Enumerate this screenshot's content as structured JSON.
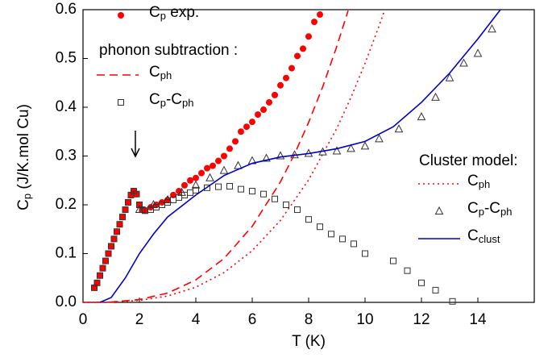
{
  "chart_data": {
    "type": "scatter",
    "x_label": "T (K)",
    "y_label": [
      "C",
      "p",
      " (J/K.mol Cu)"
    ],
    "annotations": [
      "phonon subtraction :",
      "Cluster model:"
    ],
    "xlim": [
      0,
      16
    ],
    "xticks": [
      0,
      2,
      4,
      6,
      8,
      10,
      12,
      14
    ],
    "ylim": [
      0,
      0.6
    ],
    "yticks": [
      {
        "value": 0,
        "label": "0.0"
      },
      0.1,
      0.2,
      0.3,
      0.4,
      0.5,
      0.6
    ],
    "series": [
      {
        "name": [
          "C",
          "p",
          " exp."
        ],
        "color": "#ff0000",
        "marker": "circle",
        "dash": "none",
        "x": [
          0.4,
          0.5,
          0.6,
          0.7,
          0.8,
          0.9,
          1.0,
          1.1,
          1.2,
          1.3,
          1.4,
          1.5,
          1.6,
          1.7,
          1.8,
          1.9,
          2.0,
          2.1,
          2.2,
          2.4,
          2.6,
          2.8,
          3.0,
          3.2,
          3.4,
          3.6,
          3.8,
          4.0,
          4.2,
          4.4,
          4.6,
          4.8,
          5.0,
          5.2,
          5.4,
          5.6,
          5.8,
          6.0,
          6.2,
          6.4,
          6.6,
          6.8,
          7.0,
          7.2,
          7.4,
          7.6,
          7.8,
          8.0,
          8.2,
          8.4
        ],
        "values": [
          0.03,
          0.04,
          0.055,
          0.07,
          0.085,
          0.1,
          0.115,
          0.13,
          0.145,
          0.16,
          0.175,
          0.19,
          0.205,
          0.22,
          0.228,
          0.222,
          0.2,
          0.19,
          0.188,
          0.195,
          0.2,
          0.205,
          0.21,
          0.22,
          0.228,
          0.24,
          0.25,
          0.255,
          0.265,
          0.275,
          0.28,
          0.29,
          0.3,
          0.315,
          0.33,
          0.35,
          0.36,
          0.37,
          0.385,
          0.395,
          0.41,
          0.425,
          0.445,
          0.46,
          0.48,
          0.505,
          0.52,
          0.545,
          0.575,
          0.59
        ]
      },
      {
        "name": [
          "C",
          "ph"
        ],
        "color": "#ff0000",
        "marker": "none",
        "dash": "dashed",
        "x": [
          0,
          1,
          2,
          3,
          4,
          5,
          6,
          7,
          7.5,
          8,
          8.5,
          9,
          9.4
        ],
        "values": [
          0,
          0.0007,
          0.0058,
          0.019,
          0.046,
          0.09,
          0.156,
          0.247,
          0.304,
          0.369,
          0.442,
          0.525,
          0.598
        ]
      },
      {
        "name": [
          "C",
          "p",
          "-C",
          "ph"
        ],
        "color": "#333333",
        "marker": "square",
        "dash": "none",
        "x": [
          0.4,
          0.5,
          0.6,
          0.7,
          0.8,
          0.9,
          1.0,
          1.1,
          1.2,
          1.3,
          1.4,
          1.5,
          1.6,
          1.7,
          1.8,
          1.9,
          2.0,
          2.1,
          2.2,
          2.4,
          2.6,
          2.8,
          3.0,
          3.2,
          3.4,
          3.6,
          3.8,
          4.0,
          4.4,
          4.8,
          5.2,
          5.6,
          6.0,
          6.4,
          6.8,
          7.2,
          7.6,
          8.0,
          8.4,
          8.8,
          9.2,
          9.6,
          10,
          11,
          11.5,
          12,
          12.5,
          13.1
        ],
        "values": [
          0.03,
          0.04,
          0.055,
          0.07,
          0.085,
          0.1,
          0.115,
          0.13,
          0.145,
          0.16,
          0.175,
          0.19,
          0.205,
          0.22,
          0.228,
          0.222,
          0.2,
          0.19,
          0.188,
          0.19,
          0.195,
          0.2,
          0.205,
          0.21,
          0.215,
          0.22,
          0.225,
          0.23,
          0.235,
          0.237,
          0.238,
          0.232,
          0.228,
          0.222,
          0.212,
          0.2,
          0.19,
          0.17,
          0.155,
          0.14,
          0.13,
          0.12,
          0.1,
          0.085,
          0.065,
          0.04,
          0.025,
          0.002
        ]
      },
      {
        "name": [
          "C",
          "ph"
        ],
        "color": "#ff0000",
        "marker": "none",
        "dash": "dotted",
        "x": [
          0,
          1,
          2,
          3,
          4,
          5,
          6,
          7,
          8,
          9,
          9.5,
          10,
          10.5,
          10.7
        ],
        "values": [
          0,
          0.0005,
          0.004,
          0.013,
          0.031,
          0.061,
          0.106,
          0.168,
          0.251,
          0.357,
          0.42,
          0.49,
          0.567,
          0.6
        ]
      },
      {
        "name": [
          "C",
          "p",
          "-C",
          "ph"
        ],
        "color": "#333333",
        "marker": "triangle",
        "dash": "none",
        "x": [
          2,
          2.5,
          3,
          3.5,
          4,
          4.5,
          5,
          5.5,
          6,
          6.5,
          7,
          7.5,
          8,
          8.5,
          9,
          9.5,
          10,
          10.5,
          11.2,
          12,
          12.5,
          13,
          13.5,
          14,
          14.5
        ],
        "values": [
          0.19,
          0.2,
          0.21,
          0.225,
          0.24,
          0.255,
          0.27,
          0.28,
          0.29,
          0.295,
          0.3,
          0.302,
          0.305,
          0.308,
          0.31,
          0.315,
          0.32,
          0.335,
          0.355,
          0.38,
          0.42,
          0.46,
          0.49,
          0.51,
          0.56
        ]
      },
      {
        "name": [
          "C",
          "clust"
        ],
        "color": "#0000cc",
        "marker": "none",
        "dash": "solid",
        "x": [
          0.6,
          1,
          1.5,
          2,
          2.5,
          3,
          4,
          5,
          6,
          7,
          8,
          9,
          10,
          11,
          12,
          13,
          14,
          14.8
        ],
        "values": [
          0,
          0.01,
          0.05,
          0.1,
          0.14,
          0.175,
          0.22,
          0.26,
          0.285,
          0.298,
          0.305,
          0.315,
          0.33,
          0.36,
          0.41,
          0.47,
          0.54,
          0.6
        ]
      }
    ]
  }
}
